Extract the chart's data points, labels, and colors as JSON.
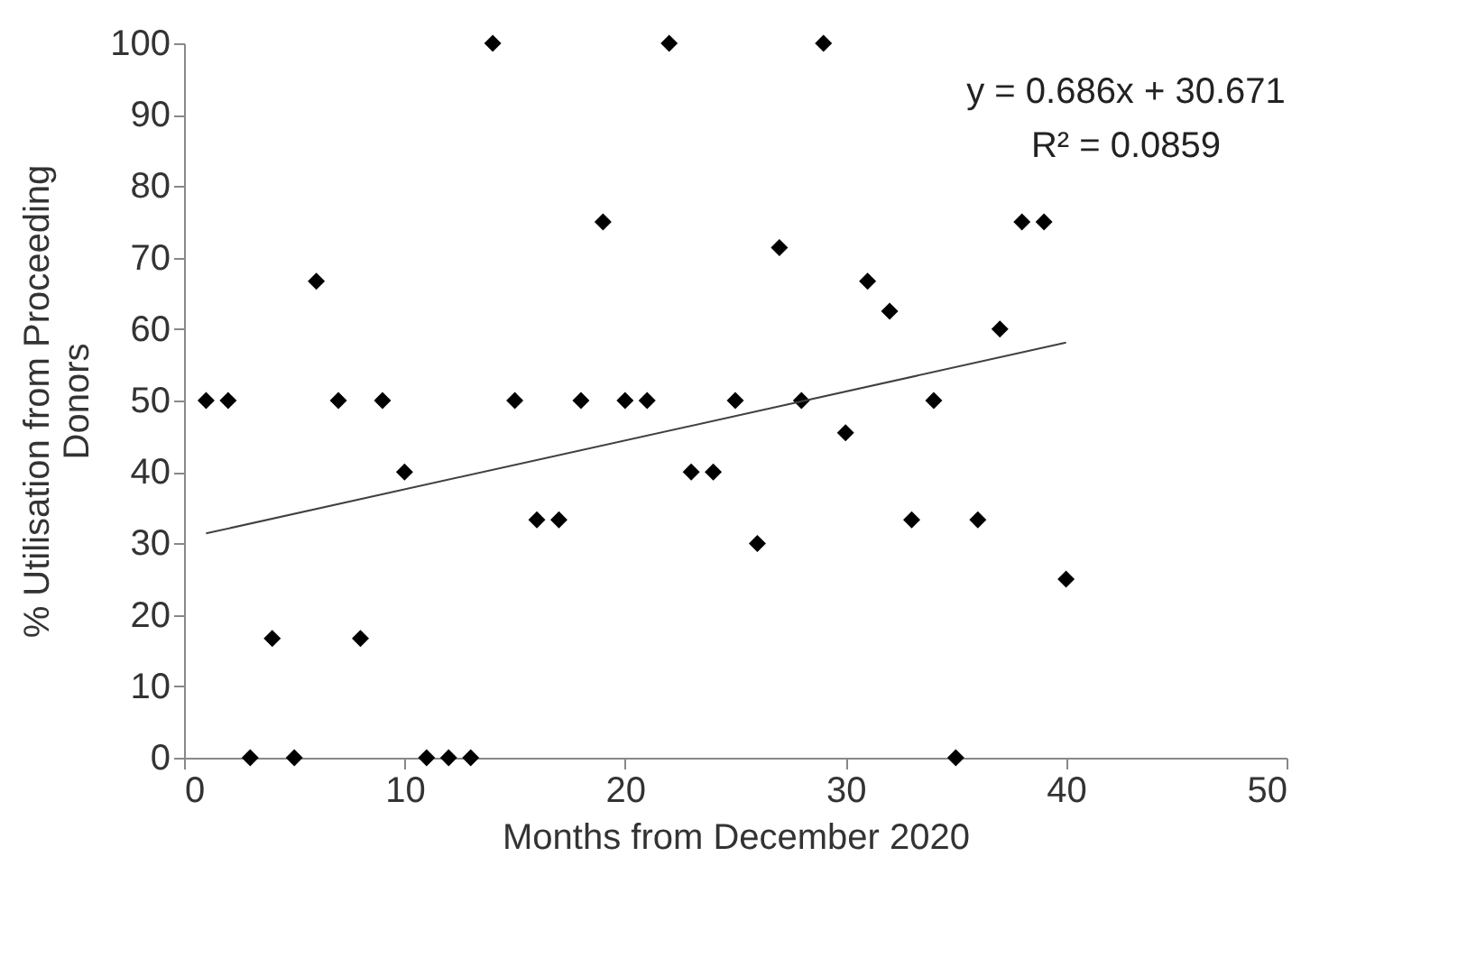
{
  "chart_data": {
    "type": "scatter",
    "xlabel": "Months from December 2020",
    "ylabel": "% Utilisation from Proceeding Donors",
    "xlim": [
      0,
      50
    ],
    "xticks": [
      0,
      10,
      20,
      30,
      40,
      50
    ],
    "ylim": [
      0,
      100
    ],
    "yticks": [
      0,
      10,
      20,
      30,
      40,
      50,
      60,
      70,
      80,
      90,
      100
    ],
    "grid": false,
    "series": [
      {
        "marker": "diamond",
        "color": "#000000",
        "x": [
          1,
          2,
          3,
          4,
          5,
          6,
          7,
          8,
          9,
          10,
          11,
          12,
          13,
          14,
          15,
          16,
          17,
          18,
          19,
          20,
          21,
          22,
          23,
          24,
          25,
          26,
          27,
          28,
          29,
          30,
          31,
          32,
          33,
          34,
          35,
          36,
          37,
          38,
          39,
          40
        ],
        "values": [
          50,
          50,
          0,
          16.7,
          0,
          66.7,
          50,
          16.7,
          50,
          40,
          0,
          0,
          0,
          100,
          50,
          33.3,
          33.3,
          50,
          75,
          50,
          50,
          100,
          40,
          40,
          50,
          30,
          71.4,
          50,
          100,
          45.5,
          66.7,
          62.5,
          33.3,
          50,
          0,
          33.3,
          60,
          75,
          75,
          25
        ]
      },
      {
        "type": "line",
        "color": "#404040",
        "x": [
          1,
          40
        ],
        "values": [
          31.4,
          58.1
        ]
      }
    ],
    "annotations": [
      "y = 0.686x + 30.671",
      "R² = 0.0859"
    ]
  }
}
